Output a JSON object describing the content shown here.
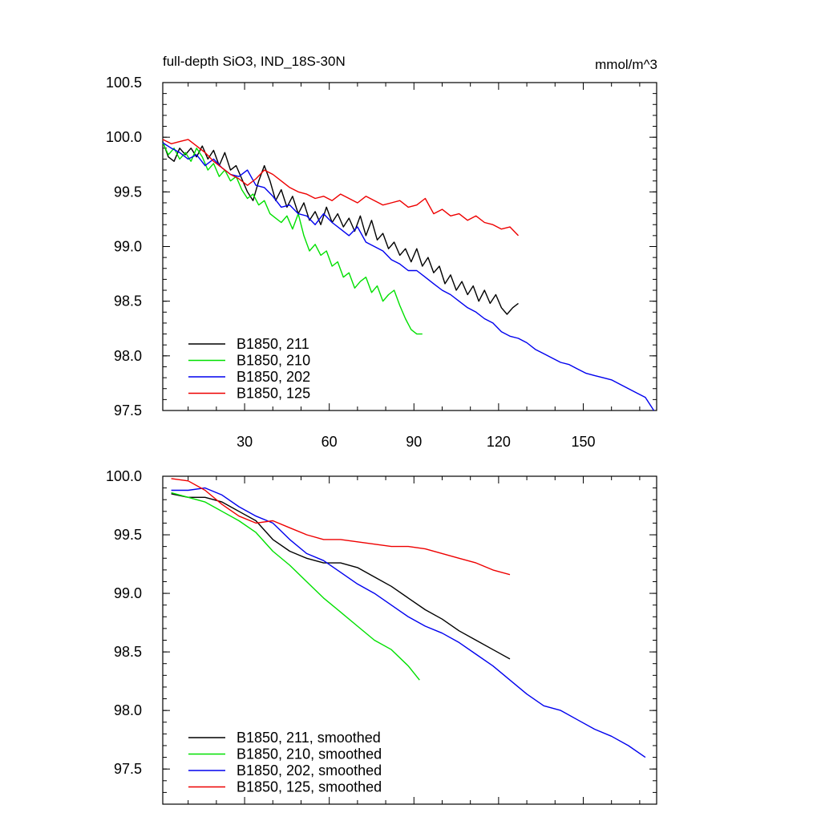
{
  "chart_data": [
    {
      "type": "line",
      "title": "full-depth SiO3, IND_18S-30N",
      "units": "mmol/m^3",
      "xlim": [
        1,
        176
      ],
      "ylim": [
        97.5,
        100.5
      ],
      "xticks": [
        30,
        60,
        90,
        120,
        150
      ],
      "yticks": [
        "97.5",
        "98.0",
        "98.5",
        "99.0",
        "99.5",
        "100.0",
        "100.5"
      ],
      "legend_position": "bottom-left",
      "series": [
        {
          "name": "B1850, 211",
          "color": "#000000",
          "x": [
            1,
            3,
            5,
            7,
            9,
            11,
            13,
            15,
            17,
            19,
            21,
            23,
            25,
            27,
            29,
            31,
            33,
            35,
            37,
            39,
            41,
            43,
            45,
            47,
            49,
            51,
            53,
            55,
            57,
            59,
            61,
            63,
            65,
            67,
            69,
            71,
            73,
            75,
            77,
            79,
            81,
            83,
            85,
            87,
            89,
            91,
            93,
            95,
            97,
            99,
            101,
            103,
            105,
            107,
            109,
            111,
            113,
            115,
            117,
            119,
            121,
            123,
            125,
            127
          ],
          "values": [
            99.96,
            99.82,
            99.78,
            99.9,
            99.84,
            99.9,
            99.82,
            99.92,
            99.8,
            99.88,
            99.74,
            99.86,
            99.7,
            99.74,
            99.62,
            99.5,
            99.42,
            99.6,
            99.74,
            99.6,
            99.42,
            99.52,
            99.36,
            99.46,
            99.3,
            99.4,
            99.24,
            99.32,
            99.2,
            99.36,
            99.22,
            99.3,
            99.18,
            99.26,
            99.14,
            99.28,
            99.1,
            99.24,
            99.06,
            99.12,
            98.98,
            99.04,
            98.92,
            98.98,
            98.86,
            98.98,
            98.82,
            98.9,
            98.76,
            98.82,
            98.66,
            98.74,
            98.6,
            98.68,
            98.56,
            98.64,
            98.5,
            98.6,
            98.48,
            98.56,
            98.44,
            98.38,
            98.44,
            98.48
          ]
        },
        {
          "name": "B1850, 210",
          "color": "#00e000",
          "x": [
            1,
            3,
            5,
            7,
            9,
            11,
            13,
            15,
            17,
            19,
            21,
            23,
            25,
            27,
            29,
            31,
            33,
            35,
            37,
            39,
            41,
            43,
            45,
            47,
            49,
            51,
            53,
            55,
            57,
            59,
            61,
            63,
            65,
            67,
            69,
            71,
            73,
            75,
            77,
            79,
            81,
            83,
            85,
            87,
            89,
            91,
            93
          ],
          "values": [
            99.95,
            99.84,
            99.9,
            99.8,
            99.86,
            99.78,
            99.9,
            99.82,
            99.7,
            99.76,
            99.64,
            99.7,
            99.6,
            99.64,
            99.52,
            99.44,
            99.48,
            99.38,
            99.42,
            99.3,
            99.26,
            99.22,
            99.28,
            99.16,
            99.3,
            99.1,
            98.96,
            99.02,
            98.92,
            98.96,
            98.82,
            98.86,
            98.72,
            98.76,
            98.62,
            98.68,
            98.72,
            98.58,
            98.64,
            98.5,
            98.56,
            98.6,
            98.46,
            98.34,
            98.24,
            98.2,
            98.2
          ]
        },
        {
          "name": "B1850, 202",
          "color": "#0000ee",
          "x": [
            1,
            4,
            7,
            10,
            13,
            16,
            19,
            22,
            25,
            28,
            31,
            34,
            37,
            40,
            43,
            46,
            49,
            52,
            55,
            58,
            61,
            64,
            67,
            70,
            73,
            76,
            79,
            82,
            85,
            88,
            91,
            94,
            97,
            100,
            103,
            106,
            109,
            112,
            115,
            118,
            121,
            124,
            127,
            130,
            133,
            136,
            139,
            142,
            145,
            148,
            151,
            154,
            157,
            160,
            163,
            166,
            169,
            172,
            175
          ],
          "values": [
            99.95,
            99.9,
            99.86,
            99.8,
            99.84,
            99.74,
            99.8,
            99.72,
            99.66,
            99.64,
            99.7,
            99.56,
            99.54,
            99.46,
            99.36,
            99.38,
            99.3,
            99.28,
            99.2,
            99.3,
            99.22,
            99.16,
            99.1,
            99.18,
            99.04,
            99.0,
            98.96,
            98.88,
            98.84,
            98.78,
            98.78,
            98.72,
            98.66,
            98.6,
            98.56,
            98.5,
            98.44,
            98.4,
            98.34,
            98.3,
            98.22,
            98.18,
            98.16,
            98.12,
            98.06,
            98.02,
            97.98,
            97.94,
            97.92,
            97.88,
            97.84,
            97.82,
            97.8,
            97.78,
            97.74,
            97.7,
            97.66,
            97.62,
            97.5
          ]
        },
        {
          "name": "B1850, 125",
          "color": "#ee0000",
          "x": [
            1,
            4,
            7,
            10,
            13,
            16,
            19,
            22,
            25,
            28,
            31,
            34,
            37,
            40,
            43,
            46,
            49,
            52,
            55,
            58,
            61,
            64,
            67,
            70,
            73,
            76,
            79,
            82,
            85,
            88,
            91,
            94,
            97,
            100,
            103,
            106,
            109,
            112,
            115,
            118,
            121,
            124,
            127
          ],
          "values": [
            99.98,
            99.94,
            99.96,
            99.98,
            99.92,
            99.86,
            99.78,
            99.72,
            99.66,
            99.62,
            99.56,
            99.62,
            99.7,
            99.66,
            99.6,
            99.54,
            99.5,
            99.48,
            99.44,
            99.46,
            99.42,
            99.48,
            99.44,
            99.4,
            99.46,
            99.42,
            99.38,
            99.4,
            99.42,
            99.36,
            99.38,
            99.44,
            99.3,
            99.34,
            99.28,
            99.3,
            99.24,
            99.28,
            99.22,
            99.2,
            99.16,
            99.18,
            99.1
          ]
        }
      ]
    },
    {
      "type": "line",
      "title": "",
      "xlim": [
        1,
        176
      ],
      "ylim": [
        97.2,
        100.0
      ],
      "xticks": [
        30,
        60,
        90,
        120,
        150
      ],
      "yticks": [
        "97.5",
        "98.0",
        "98.5",
        "99.0",
        "99.5",
        "100.0"
      ],
      "legend_position": "bottom-left",
      "series": [
        {
          "name": "B1850, 211, smoothed",
          "color": "#000000",
          "x": [
            4,
            10,
            16,
            22,
            28,
            34,
            40,
            46,
            52,
            58,
            64,
            70,
            76,
            82,
            88,
            94,
            100,
            106,
            112,
            118,
            124
          ],
          "values": [
            99.85,
            99.82,
            99.82,
            99.78,
            99.7,
            99.62,
            99.46,
            99.36,
            99.3,
            99.26,
            99.26,
            99.22,
            99.14,
            99.06,
            98.96,
            98.86,
            98.78,
            98.68,
            98.6,
            98.52,
            98.44
          ]
        },
        {
          "name": "B1850, 210, smoothed",
          "color": "#00e000",
          "x": [
            4,
            10,
            16,
            22,
            28,
            34,
            40,
            46,
            52,
            58,
            64,
            70,
            76,
            82,
            88,
            92
          ],
          "values": [
            99.86,
            99.82,
            99.78,
            99.7,
            99.62,
            99.52,
            99.36,
            99.24,
            99.1,
            98.96,
            98.84,
            98.72,
            98.6,
            98.52,
            98.38,
            98.26
          ]
        },
        {
          "name": "B1850, 202, smoothed",
          "color": "#0000ee",
          "x": [
            4,
            10,
            16,
            22,
            28,
            34,
            40,
            46,
            52,
            58,
            64,
            70,
            76,
            82,
            88,
            94,
            100,
            106,
            112,
            118,
            124,
            130,
            136,
            142,
            148,
            154,
            160,
            166,
            172
          ],
          "values": [
            99.88,
            99.88,
            99.9,
            99.84,
            99.74,
            99.66,
            99.6,
            99.46,
            99.34,
            99.28,
            99.18,
            99.08,
            99.0,
            98.9,
            98.8,
            98.72,
            98.66,
            98.58,
            98.48,
            98.38,
            98.26,
            98.14,
            98.04,
            98.0,
            97.92,
            97.84,
            97.78,
            97.7,
            97.6
          ]
        },
        {
          "name": "B1850, 125, smoothed",
          "color": "#ee0000",
          "x": [
            4,
            10,
            16,
            22,
            28,
            34,
            40,
            46,
            52,
            58,
            64,
            70,
            76,
            82,
            88,
            94,
            100,
            106,
            112,
            118,
            124
          ],
          "values": [
            99.98,
            99.96,
            99.88,
            99.76,
            99.66,
            99.6,
            99.62,
            99.56,
            99.5,
            99.46,
            99.46,
            99.44,
            99.42,
            99.4,
            99.4,
            99.38,
            99.34,
            99.3,
            99.26,
            99.2,
            99.16
          ]
        }
      ]
    }
  ]
}
